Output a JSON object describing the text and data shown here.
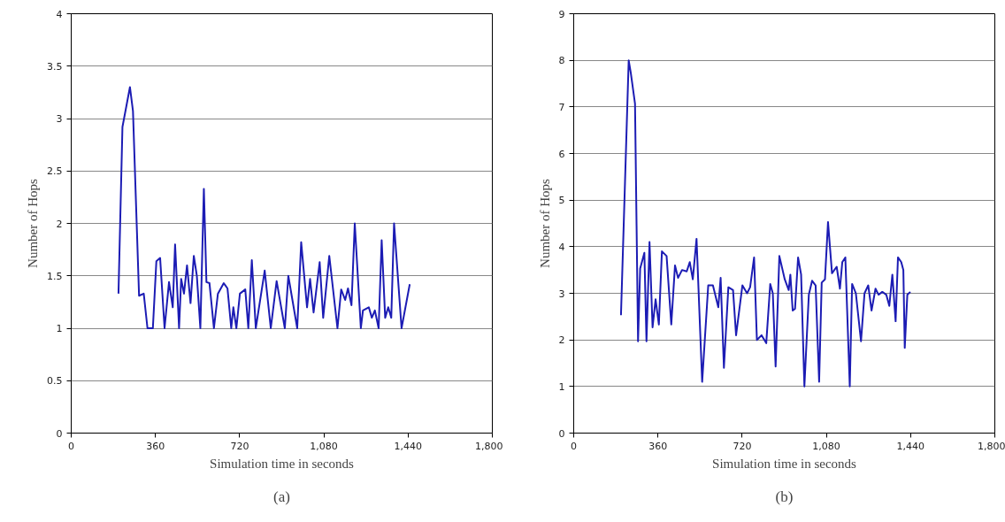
{
  "chart_data": [
    {
      "type": "line",
      "xlabel": "Simulation time in seconds",
      "ylabel": "Number of Hops",
      "annotations": [
        "(a)"
      ],
      "grid": "y",
      "marker": "none",
      "line_style": "solid",
      "xlim": [
        0,
        1800
      ],
      "xticks": [
        0,
        360,
        720,
        {
          "value": 1080,
          "label": "1,080"
        },
        {
          "value": 1440,
          "label": "1,440"
        },
        {
          "value": 1800,
          "label": "1,800"
        }
      ],
      "ylim": [
        0,
        4
      ],
      "yticks": [
        0,
        0.5,
        1,
        1.5,
        2,
        2.5,
        3,
        3.5,
        4
      ],
      "x": [
        202,
        219,
        251,
        264,
        290,
        310,
        326,
        349,
        364,
        380,
        399,
        418,
        434,
        444,
        461,
        470,
        482,
        495,
        510,
        524,
        537,
        552,
        567,
        578,
        591,
        610,
        627,
        652,
        668,
        684,
        693,
        706,
        721,
        744,
        757,
        772,
        789,
        827,
        853,
        878,
        913,
        928,
        966,
        983,
        1008,
        1021,
        1036,
        1062,
        1077,
        1103,
        1138,
        1154,
        1171,
        1183,
        1198,
        1212,
        1238,
        1247,
        1272,
        1285,
        1298,
        1314,
        1327,
        1342,
        1355,
        1368,
        1380,
        1412,
        1447
      ],
      "series": [
        {
          "color": "#1c1cb4",
          "values": [
            1.33,
            2.92,
            3.3,
            3.07,
            1.31,
            1.33,
            1.0,
            1.0,
            1.64,
            1.67,
            1.0,
            1.44,
            1.2,
            1.8,
            1.0,
            1.47,
            1.33,
            1.6,
            1.24,
            1.69,
            1.5,
            1.0,
            2.33,
            1.44,
            1.43,
            1.0,
            1.33,
            1.43,
            1.38,
            1.0,
            1.2,
            1.0,
            1.33,
            1.37,
            1.0,
            1.65,
            1.0,
            1.55,
            1.0,
            1.45,
            1.0,
            1.5,
            1.0,
            1.82,
            1.2,
            1.47,
            1.15,
            1.63,
            1.1,
            1.69,
            1.0,
            1.37,
            1.27,
            1.38,
            1.22,
            2.0,
            1.0,
            1.17,
            1.2,
            1.1,
            1.17,
            1.0,
            1.84,
            1.1,
            1.2,
            1.1,
            2.0,
            1.0,
            1.42
          ]
        }
      ]
    },
    {
      "type": "line",
      "xlabel": "Simulation time in seconds",
      "ylabel": "Number of Hops",
      "annotations": [
        "(b)"
      ],
      "grid": "y",
      "marker": "none",
      "line_style": "solid",
      "xlim": [
        0,
        1800
      ],
      "xticks": [
        0,
        360,
        720,
        {
          "value": 1080,
          "label": "1,080"
        },
        {
          "value": 1440,
          "label": "1,440"
        },
        {
          "value": 1800,
          "label": "1,800"
        }
      ],
      "ylim": [
        0,
        9
      ],
      "yticks": [
        0,
        1,
        2,
        3,
        4,
        5,
        6,
        7,
        8,
        9
      ],
      "x": [
        202,
        235,
        244,
        262,
        275,
        284,
        302,
        311,
        324,
        337,
        350,
        364,
        377,
        397,
        417,
        433,
        446,
        463,
        483,
        496,
        509,
        525,
        549,
        575,
        595,
        618,
        628,
        642,
        661,
        681,
        694,
        721,
        741,
        754,
        771,
        783,
        803,
        823,
        840,
        851,
        863,
        879,
        902,
        919,
        926,
        936,
        946,
        959,
        972,
        986,
        1005,
        1019,
        1034,
        1049,
        1060,
        1074,
        1087,
        1104,
        1124,
        1138,
        1148,
        1161,
        1180,
        1190,
        1206,
        1228,
        1243,
        1259,
        1273,
        1290,
        1303,
        1319,
        1336,
        1349,
        1362,
        1376,
        1386,
        1400,
        1409,
        1415,
        1426,
        1439
      ],
      "series": [
        {
          "color": "#1c1cb4",
          "values": [
            2.53,
            8.0,
            7.73,
            7.07,
            1.97,
            3.53,
            3.87,
            1.97,
            4.1,
            2.27,
            2.87,
            2.33,
            3.9,
            3.8,
            2.33,
            3.6,
            3.33,
            3.5,
            3.47,
            3.67,
            3.3,
            4.17,
            1.1,
            3.17,
            3.17,
            2.7,
            3.33,
            1.4,
            3.13,
            3.07,
            2.1,
            3.17,
            3.0,
            3.13,
            3.77,
            2.0,
            2.1,
            1.93,
            3.2,
            3.0,
            1.43,
            3.8,
            3.3,
            3.07,
            3.4,
            2.63,
            2.67,
            3.77,
            3.4,
            1.0,
            2.97,
            3.27,
            3.17,
            1.1,
            3.23,
            3.3,
            4.53,
            3.43,
            3.57,
            3.1,
            3.67,
            3.77,
            1.0,
            3.2,
            3.0,
            1.97,
            3.0,
            3.17,
            2.63,
            3.1,
            2.97,
            3.03,
            2.97,
            2.73,
            3.4,
            2.4,
            3.77,
            3.67,
            3.5,
            1.83,
            2.97,
            3.03
          ]
        }
      ]
    }
  ]
}
